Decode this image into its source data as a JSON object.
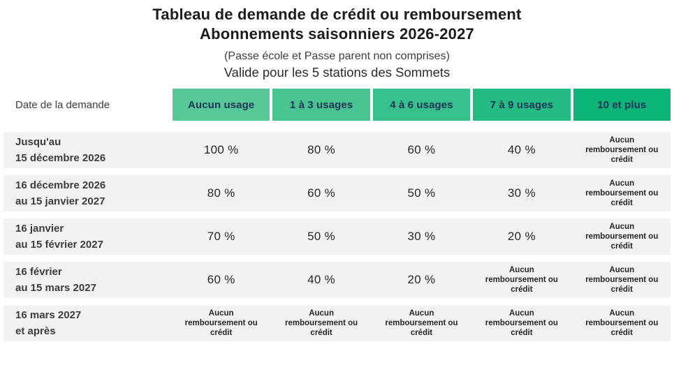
{
  "title": {
    "line1": "Tableau de demande de crédit ou remboursement",
    "line2": "Abonnements saisonniers 2026-2027"
  },
  "subtitle1": "(Passe école et Passe parent non comprises)",
  "subtitle2": "Valide pour les 5 stations des Sommets",
  "table": {
    "corner_label": "Date de la demande",
    "no_refund_text": "Aucun remboursement ou crédit",
    "header_text_color": "#1c3356",
    "row_background": "#f2f2f2",
    "columns": [
      {
        "label": "Aucun usage",
        "color": "#57c998"
      },
      {
        "label": "1 à 3 usages",
        "color": "#47c492"
      },
      {
        "label": "4 à 6 usages",
        "color": "#37c08b"
      },
      {
        "label": "7 à 9 usages",
        "color": "#25bc84"
      },
      {
        "label": "10 et plus",
        "color": "#0db478"
      }
    ],
    "rows": [
      {
        "date_line1": "Jusqu'au",
        "date_line2": "15 décembre 2026",
        "values": [
          "100 %",
          "80 %",
          "60 %",
          "40 %",
          null
        ]
      },
      {
        "date_line1": "16 décembre 2026",
        "date_line2": "au 15 janvier 2027",
        "values": [
          "80 %",
          "60 %",
          "50 %",
          "30 %",
          null
        ]
      },
      {
        "date_line1": "16 janvier",
        "date_line2": "au 15 février 2027",
        "values": [
          "70 %",
          "50 %",
          "30 %",
          "20 %",
          null
        ]
      },
      {
        "date_line1": "16 février",
        "date_line2": "au 15 mars 2027",
        "values": [
          "60 %",
          "40 %",
          "20 %",
          null,
          null
        ]
      },
      {
        "date_line1": "16 mars 2027",
        "date_line2": "et après",
        "values": [
          null,
          null,
          null,
          null,
          null
        ]
      }
    ]
  }
}
